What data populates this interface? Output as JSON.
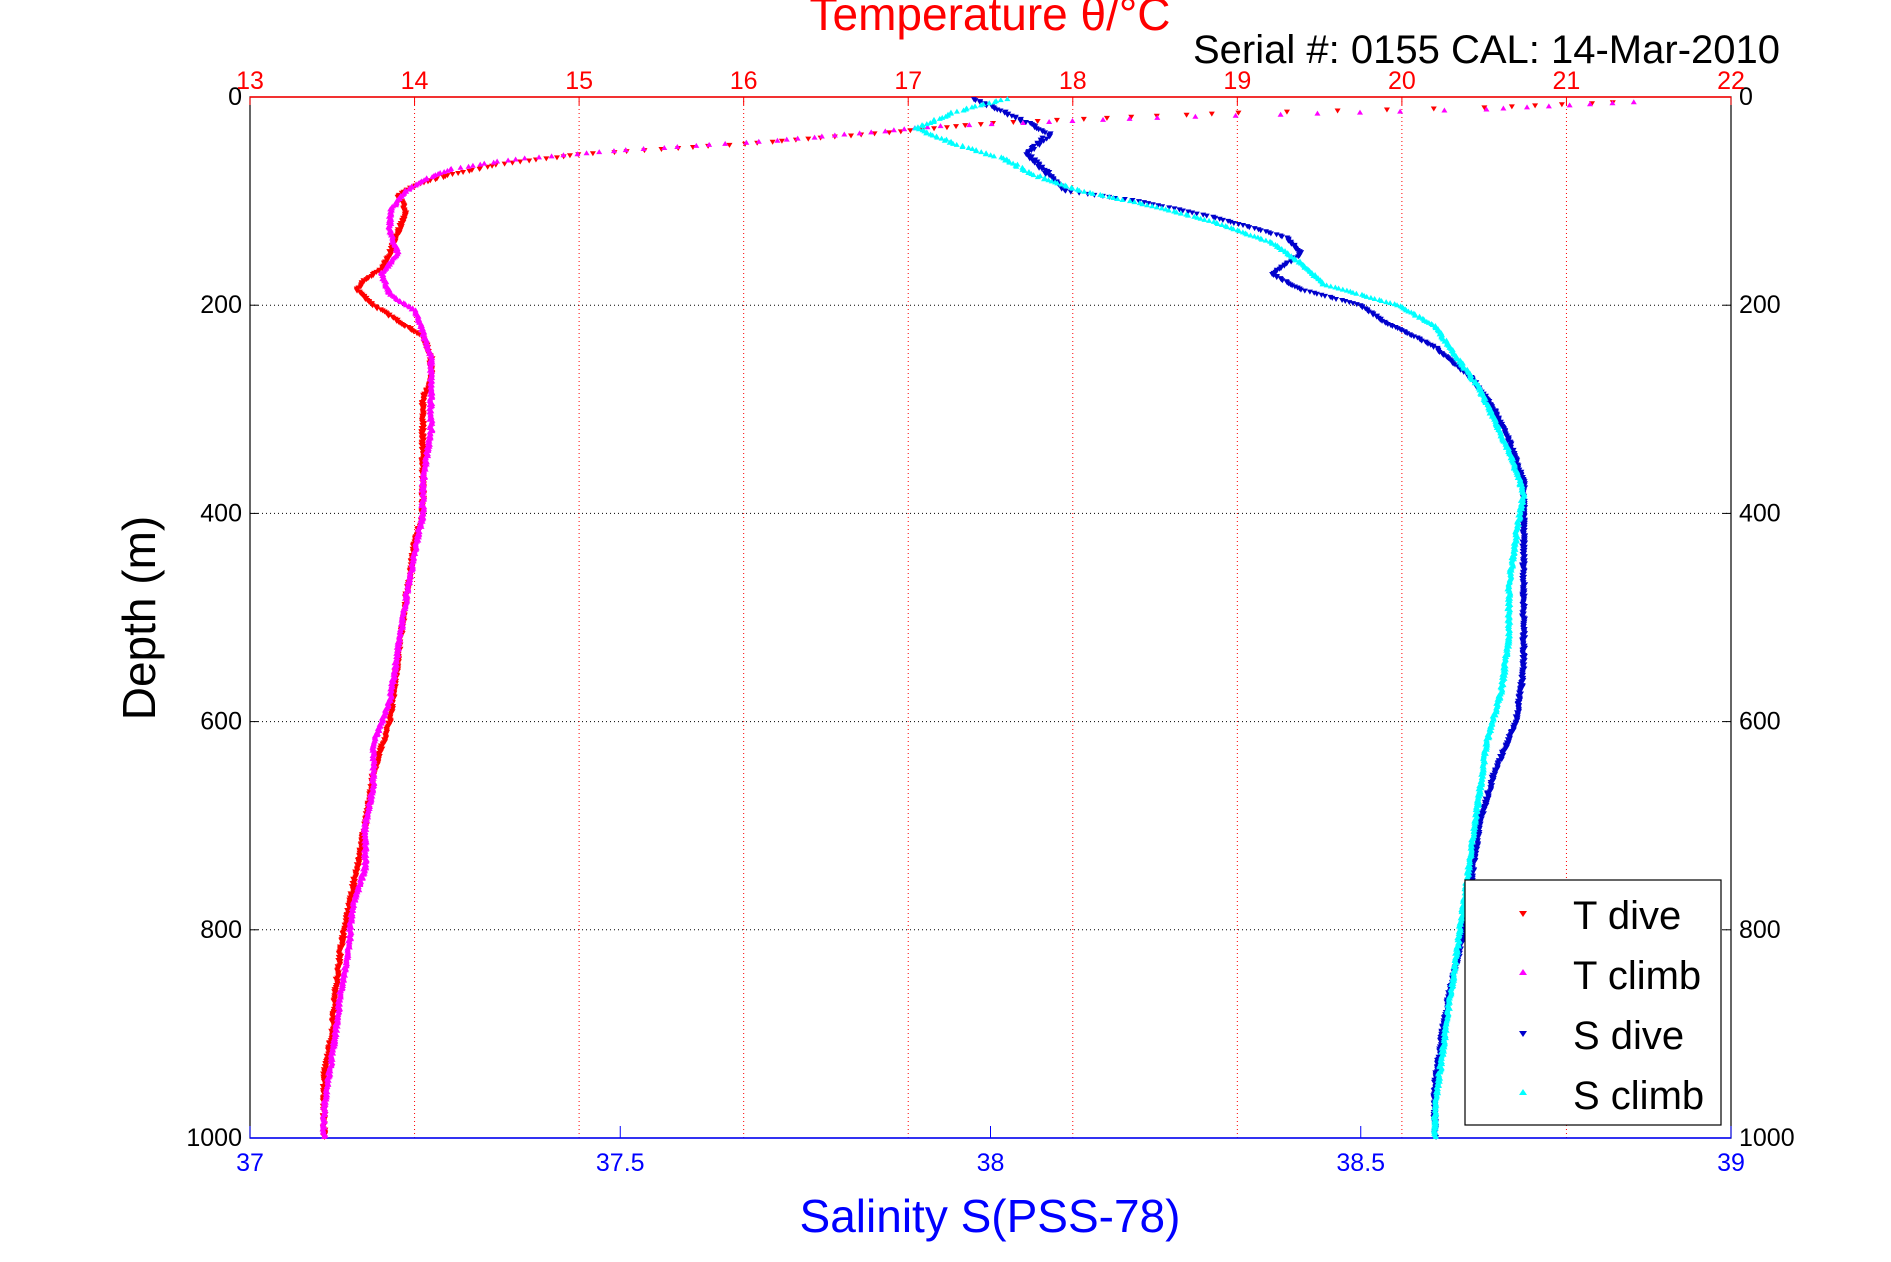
{
  "chart_data": {
    "type": "scatter",
    "title": "Temperature θ/°C",
    "subtitle": "Serial #: 0155  CAL: 14-Mar-2010",
    "ylabel": "Depth (m)",
    "xlabel": "Salinity S(PSS-78)",
    "ylim": [
      0,
      1000
    ],
    "y_reversed": true,
    "y_ticks": [
      0,
      200,
      400,
      600,
      800,
      1000
    ],
    "x_salinity_lim": [
      37,
      39
    ],
    "x_salinity_ticks": [
      "37",
      "37.5",
      "38",
      "38.5",
      "39"
    ],
    "x_temperature_lim": [
      13,
      22
    ],
    "x_temperature_ticks": [
      "13",
      "14",
      "15",
      "16",
      "17",
      "18",
      "19",
      "20",
      "21",
      "22"
    ],
    "grid": true,
    "legend_position": "bottom-right",
    "colors": {
      "temperature_axis": "#ff0000",
      "salinity_axis": "#0000ff",
      "axis_black": "#000000",
      "T dive": "#ff0000",
      "T climb": "#ff00ff",
      "S dive": "#0000cc",
      "S climb": "#00ffff"
    },
    "series": [
      {
        "name": "T dive",
        "axis": "temperature",
        "marker": "triangle-down",
        "points": [
          [
            21.3,
            5
          ],
          [
            20.5,
            10
          ],
          [
            19.0,
            15
          ],
          [
            18.2,
            20
          ],
          [
            17.5,
            25
          ],
          [
            16.8,
            35
          ],
          [
            16.0,
            45
          ],
          [
            15.0,
            55
          ],
          [
            14.5,
            65
          ],
          [
            14.2,
            75
          ],
          [
            14.0,
            85
          ],
          [
            13.9,
            95
          ],
          [
            13.95,
            110
          ],
          [
            13.9,
            130
          ],
          [
            13.85,
            150
          ],
          [
            13.8,
            165
          ],
          [
            13.7,
            175
          ],
          [
            13.65,
            185
          ],
          [
            13.75,
            200
          ],
          [
            13.9,
            215
          ],
          [
            14.05,
            230
          ],
          [
            14.1,
            250
          ],
          [
            14.1,
            270
          ],
          [
            14.05,
            290
          ],
          [
            14.05,
            310
          ],
          [
            14.05,
            350
          ],
          [
            14.05,
            400
          ],
          [
            14.0,
            430
          ],
          [
            13.95,
            480
          ],
          [
            13.9,
            540
          ],
          [
            13.85,
            600
          ],
          [
            13.75,
            650
          ],
          [
            13.7,
            700
          ],
          [
            13.65,
            740
          ],
          [
            13.6,
            780
          ],
          [
            13.55,
            820
          ],
          [
            13.52,
            860
          ],
          [
            13.5,
            900
          ],
          [
            13.45,
            940
          ],
          [
            13.45,
            970
          ],
          [
            13.45,
            1000
          ]
        ]
      },
      {
        "name": "T climb",
        "axis": "temperature",
        "marker": "triangle-up",
        "points": [
          [
            21.4,
            5
          ],
          [
            20.5,
            12
          ],
          [
            18.5,
            20
          ],
          [
            17.2,
            28
          ],
          [
            16.2,
            42
          ],
          [
            15.2,
            52
          ],
          [
            14.6,
            60
          ],
          [
            14.2,
            70
          ],
          [
            14.05,
            80
          ],
          [
            13.95,
            90
          ],
          [
            13.85,
            110
          ],
          [
            13.85,
            130
          ],
          [
            13.9,
            150
          ],
          [
            13.8,
            170
          ],
          [
            13.85,
            190
          ],
          [
            14.0,
            205
          ],
          [
            14.05,
            225
          ],
          [
            14.1,
            250
          ],
          [
            14.1,
            280
          ],
          [
            14.1,
            320
          ],
          [
            14.05,
            370
          ],
          [
            14.05,
            400
          ],
          [
            14.0,
            440
          ],
          [
            13.95,
            480
          ],
          [
            13.9,
            530
          ],
          [
            13.85,
            580
          ],
          [
            13.75,
            620
          ],
          [
            13.75,
            660
          ],
          [
            13.7,
            700
          ],
          [
            13.7,
            740
          ],
          [
            13.62,
            780
          ],
          [
            13.6,
            820
          ],
          [
            13.55,
            860
          ],
          [
            13.52,
            900
          ],
          [
            13.48,
            940
          ],
          [
            13.45,
            970
          ],
          [
            13.45,
            1000
          ]
        ]
      },
      {
        "name": "S dive",
        "axis": "salinity",
        "marker": "triangle-down",
        "points": [
          [
            37.98,
            2
          ],
          [
            38.02,
            15
          ],
          [
            38.08,
            35
          ],
          [
            38.05,
            55
          ],
          [
            38.08,
            75
          ],
          [
            38.1,
            90
          ],
          [
            38.2,
            100
          ],
          [
            38.3,
            115
          ],
          [
            38.4,
            135
          ],
          [
            38.42,
            150
          ],
          [
            38.38,
            170
          ],
          [
            38.42,
            185
          ],
          [
            38.5,
            200
          ],
          [
            38.53,
            215
          ],
          [
            38.6,
            240
          ],
          [
            38.65,
            270
          ],
          [
            38.68,
            300
          ],
          [
            38.7,
            330
          ],
          [
            38.72,
            370
          ],
          [
            38.72,
            400
          ],
          [
            38.72,
            450
          ],
          [
            38.72,
            500
          ],
          [
            38.72,
            550
          ],
          [
            38.71,
            600
          ],
          [
            38.68,
            650
          ],
          [
            38.66,
            700
          ],
          [
            38.65,
            750
          ],
          [
            38.64,
            800
          ],
          [
            38.62,
            860
          ],
          [
            38.61,
            900
          ],
          [
            38.6,
            950
          ],
          [
            38.6,
            1000
          ]
        ]
      },
      {
        "name": "S climb",
        "axis": "salinity",
        "marker": "triangle-up",
        "points": [
          [
            38.02,
            2
          ],
          [
            37.95,
            15
          ],
          [
            37.9,
            30
          ],
          [
            37.95,
            45
          ],
          [
            38.02,
            60
          ],
          [
            38.06,
            75
          ],
          [
            38.12,
            90
          ],
          [
            38.22,
            105
          ],
          [
            38.3,
            120
          ],
          [
            38.38,
            140
          ],
          [
            38.42,
            160
          ],
          [
            38.45,
            180
          ],
          [
            38.55,
            200
          ],
          [
            38.6,
            220
          ],
          [
            38.63,
            250
          ],
          [
            38.66,
            280
          ],
          [
            38.68,
            310
          ],
          [
            38.7,
            340
          ],
          [
            38.72,
            380
          ],
          [
            38.71,
            420
          ],
          [
            38.7,
            470
          ],
          [
            38.7,
            520
          ],
          [
            38.69,
            570
          ],
          [
            38.67,
            620
          ],
          [
            38.66,
            670
          ],
          [
            38.65,
            720
          ],
          [
            38.64,
            770
          ],
          [
            38.63,
            820
          ],
          [
            38.62,
            870
          ],
          [
            38.61,
            920
          ],
          [
            38.6,
            970
          ],
          [
            38.6,
            1000
          ]
        ]
      }
    ]
  }
}
